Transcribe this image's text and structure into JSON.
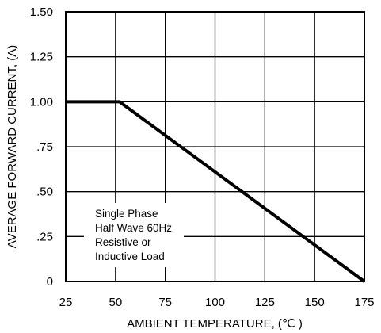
{
  "chart_data": {
    "type": "line",
    "title": "",
    "xlabel": "AMBIENT TEMPERATURE, (℃ )",
    "ylabel": "AVERAGE FORWARD CURRENT, (A)",
    "xlim": [
      25,
      175
    ],
    "ylim": [
      0,
      1.5
    ],
    "x_ticks": [
      25,
      50,
      75,
      100,
      125,
      150,
      175
    ],
    "x_tick_labels": [
      "25",
      "50",
      "75",
      "100",
      "125",
      "150",
      "175"
    ],
    "y_ticks": [
      0,
      0.25,
      0.5,
      0.75,
      1.0,
      1.25,
      1.5
    ],
    "y_tick_labels": [
      "0",
      ".25",
      ".50",
      ".75",
      "1.00",
      "1.25",
      "1.50"
    ],
    "grid": true,
    "series": [
      {
        "x": [
          25,
          52,
          175
        ],
        "y": [
          1.0,
          1.0,
          0.0
        ],
        "color": "#000000"
      }
    ],
    "annotation": {
      "lines": [
        "Single Phase",
        "Half Wave 60Hz",
        "Resistive or",
        "Inductive Load"
      ]
    }
  }
}
